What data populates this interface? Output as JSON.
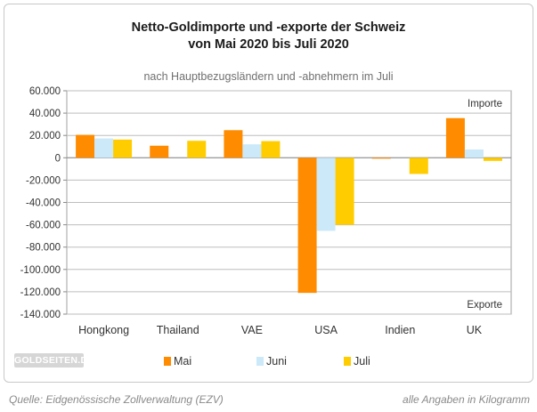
{
  "chart_data": {
    "type": "bar",
    "title_line1": "Netto-Goldimporte und -exporte der Schweiz",
    "title_line2": "von Mai 2020 bis Juli 2020",
    "subtitle": "nach Hauptbezugsländern und -abnehmern im Juli",
    "categories": [
      "Hongkong",
      "Thailand",
      "VAE",
      "USA",
      "Indien",
      "UK"
    ],
    "series": [
      {
        "name": "Mai",
        "color": "#ff8c00",
        "values": [
          20500,
          10800,
          24700,
          -121000,
          -300,
          35500
        ]
      },
      {
        "name": "Juni",
        "color": "#cce9f9",
        "values": [
          17300,
          0,
          12100,
          -65500,
          0,
          7400
        ]
      },
      {
        "name": "Juli",
        "color": "#ffcc00",
        "values": [
          16300,
          15200,
          14900,
          -60000,
          -14500,
          -2800
        ]
      }
    ],
    "ylim": [
      -140000,
      60000
    ],
    "yticks": [
      "60.000",
      "40.000",
      "20.000",
      "0",
      "-20.000",
      "-40.000",
      "-60.000",
      "-80.000",
      "-100.000",
      "-120.000",
      "-140.000"
    ],
    "ytick_values": [
      60000,
      40000,
      20000,
      0,
      -20000,
      -40000,
      -60000,
      -80000,
      -100000,
      -120000,
      -140000
    ],
    "annotation_top": "Importe",
    "annotation_bottom": "Exporte",
    "grid": true,
    "legend_position": "bottom"
  },
  "logo_text": "GOLDSEITEN.DE",
  "footer": {
    "source": "Quelle: Eidgenössische Zollverwaltung (EZV)",
    "unit_note": "alle Angaben in Kilogramm"
  }
}
